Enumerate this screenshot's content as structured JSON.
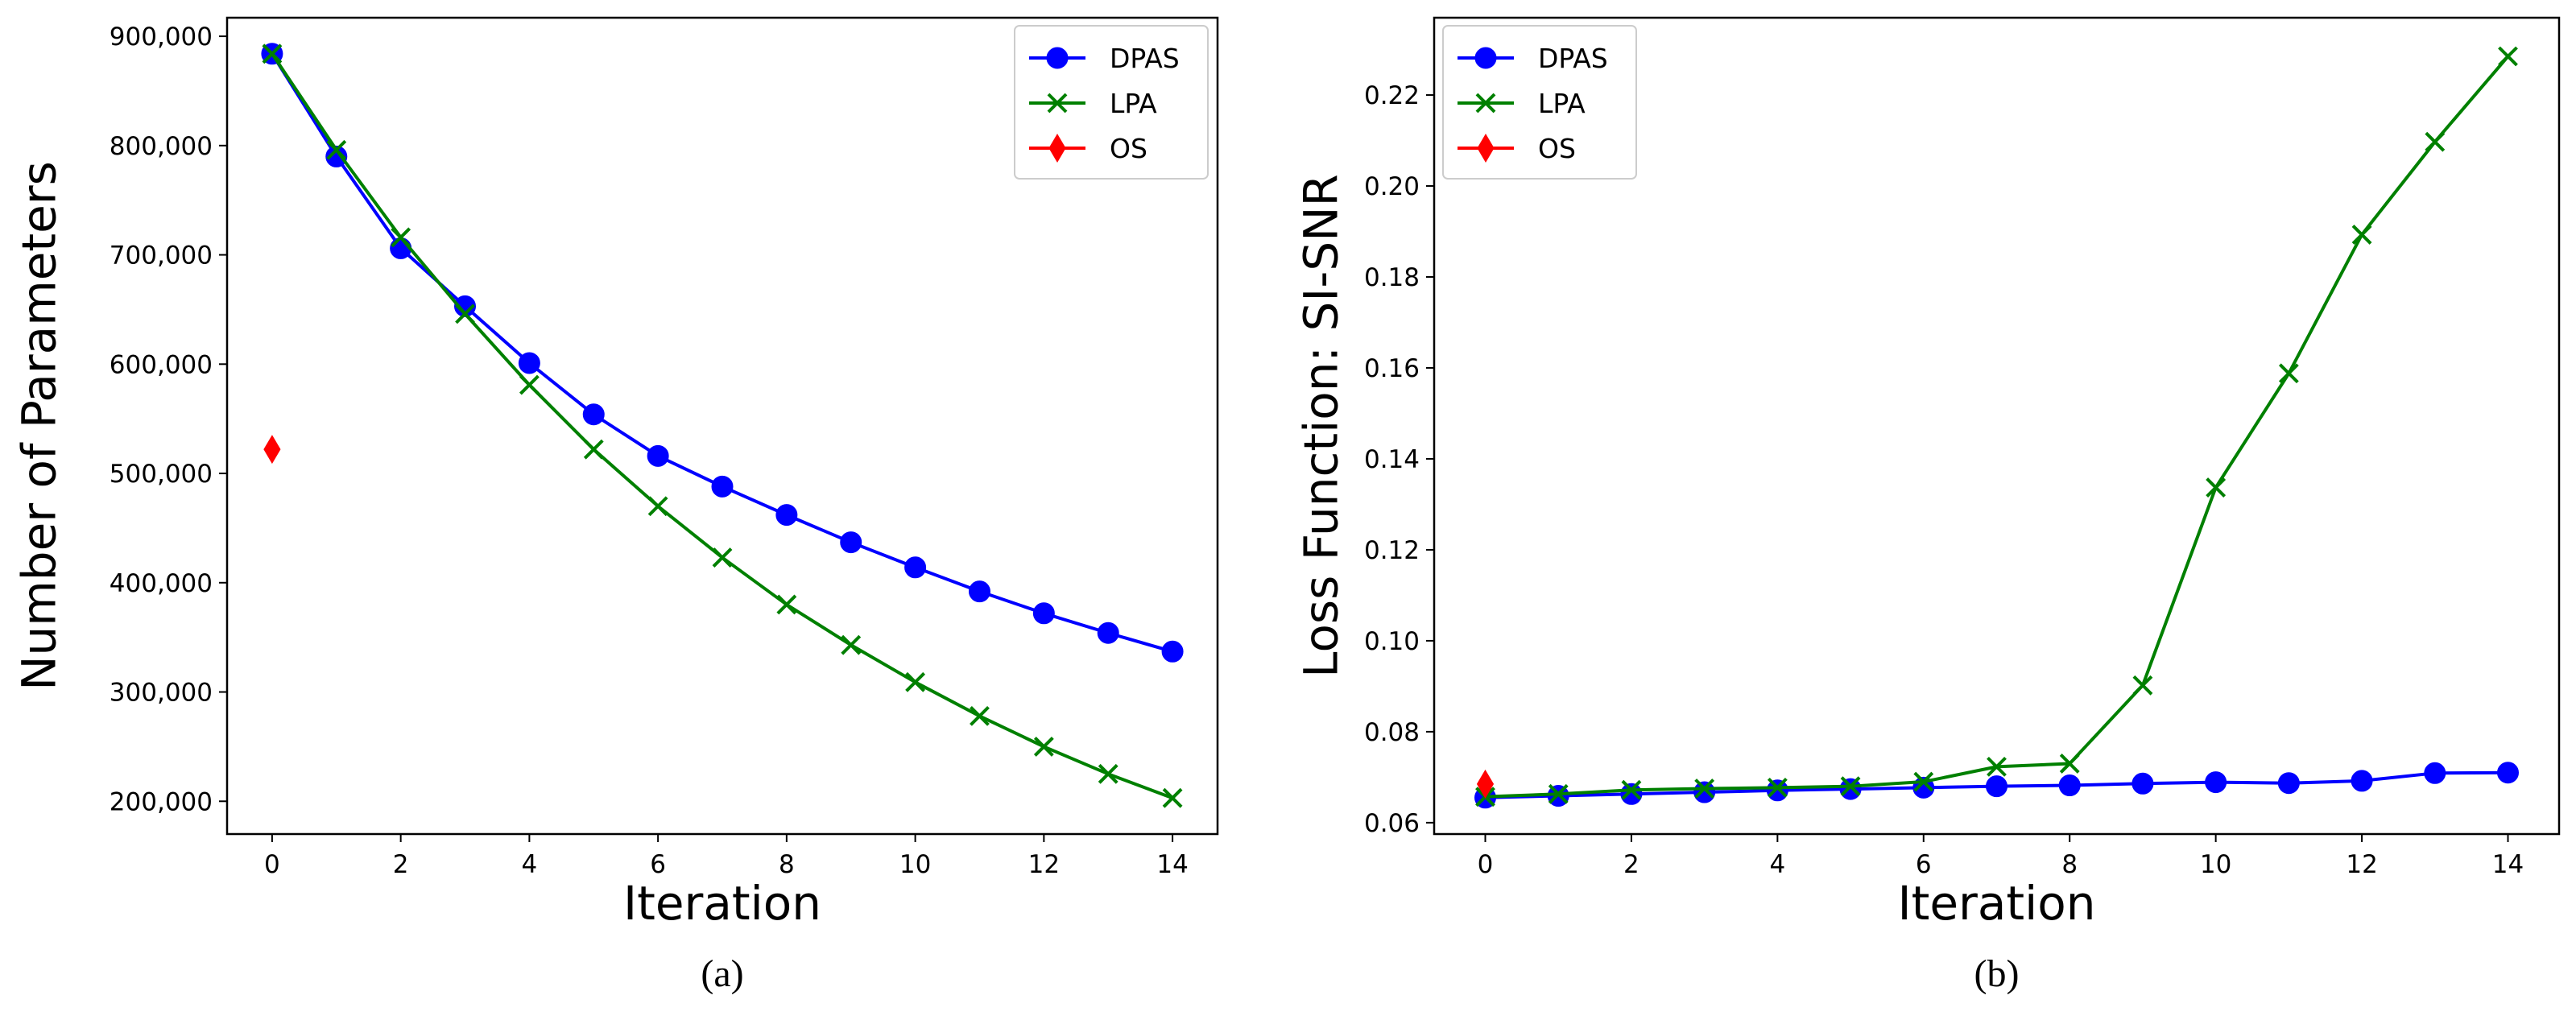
{
  "chart_data": [
    {
      "type": "line",
      "caption": "(a)",
      "xlabel": "Iteration",
      "ylabel": "Number of Parameters",
      "xlim": [
        -0.7,
        14.7
      ],
      "ylim": [
        170000,
        917000
      ],
      "xticks": [
        0,
        2,
        4,
        6,
        8,
        10,
        12,
        14
      ],
      "xtick_labels": [
        "0",
        "2",
        "4",
        "6",
        "8",
        "10",
        "12",
        "14"
      ],
      "yticks": [
        200000,
        300000,
        400000,
        500000,
        600000,
        700000,
        800000,
        900000
      ],
      "ytick_labels": [
        "200,000",
        "300,000",
        "400,000",
        "500,000",
        "600,000",
        "700,000",
        "800,000",
        "900,000"
      ],
      "grid": false,
      "legend_position": "top-right",
      "series": [
        {
          "name": "DPAS",
          "color": "#0000ff",
          "marker": "circle",
          "x": [
            0,
            1,
            2,
            3,
            4,
            5,
            6,
            7,
            8,
            9,
            10,
            11,
            12,
            13,
            14
          ],
          "y": [
            884000,
            790000,
            706000,
            653000,
            601000,
            554000,
            516000,
            488000,
            462000,
            437000,
            414000,
            392000,
            372000,
            354000,
            337000
          ]
        },
        {
          "name": "LPA",
          "color": "#008000",
          "marker": "x",
          "x": [
            0,
            1,
            2,
            3,
            4,
            5,
            6,
            7,
            8,
            9,
            10,
            11,
            12,
            13,
            14
          ],
          "y": [
            884000,
            796000,
            716000,
            646000,
            581000,
            522000,
            470000,
            423000,
            380000,
            343000,
            309000,
            278000,
            250000,
            225000,
            203000
          ]
        },
        {
          "name": "OS",
          "color": "#ff0000",
          "marker": "diamond",
          "x": [
            0
          ],
          "y": [
            522000
          ]
        }
      ]
    },
    {
      "type": "line",
      "caption": "(b)",
      "xlabel": "Iteration",
      "ylabel": "Loss Function: SI-SNR",
      "xlim": [
        -0.7,
        14.7
      ],
      "ylim": [
        0.0575,
        0.237
      ],
      "xticks": [
        0,
        2,
        4,
        6,
        8,
        10,
        12,
        14
      ],
      "xtick_labels": [
        "0",
        "2",
        "4",
        "6",
        "8",
        "10",
        "12",
        "14"
      ],
      "yticks": [
        0.06,
        0.08,
        0.1,
        0.12,
        0.14,
        0.16,
        0.18,
        0.2,
        0.22
      ],
      "ytick_labels": [
        "0.06",
        "0.08",
        "0.10",
        "0.12",
        "0.14",
        "0.16",
        "0.18",
        "0.20",
        "0.22"
      ],
      "grid": false,
      "legend_position": "top-left",
      "series": [
        {
          "name": "DPAS",
          "color": "#0000ff",
          "marker": "circle",
          "x": [
            0,
            1,
            2,
            3,
            4,
            5,
            6,
            7,
            8,
            9,
            10,
            11,
            12,
            13,
            14
          ],
          "y": [
            0.0655,
            0.0659,
            0.0663,
            0.0667,
            0.0671,
            0.0674,
            0.0677,
            0.068,
            0.0682,
            0.0686,
            0.0689,
            0.0687,
            0.0692,
            0.0709,
            0.071
          ]
        },
        {
          "name": "LPA",
          "color": "#008000",
          "marker": "x",
          "x": [
            0,
            1,
            2,
            3,
            4,
            5,
            6,
            7,
            8,
            9,
            10,
            11,
            12,
            13,
            14
          ],
          "y": [
            0.0657,
            0.0663,
            0.0672,
            0.0675,
            0.0677,
            0.068,
            0.069,
            0.0723,
            0.073,
            0.0902,
            0.1337,
            0.1588,
            0.1893,
            0.2097,
            0.2285
          ]
        },
        {
          "name": "OS",
          "color": "#ff0000",
          "marker": "diamond",
          "x": [
            0
          ],
          "y": [
            0.0685
          ]
        }
      ]
    }
  ]
}
